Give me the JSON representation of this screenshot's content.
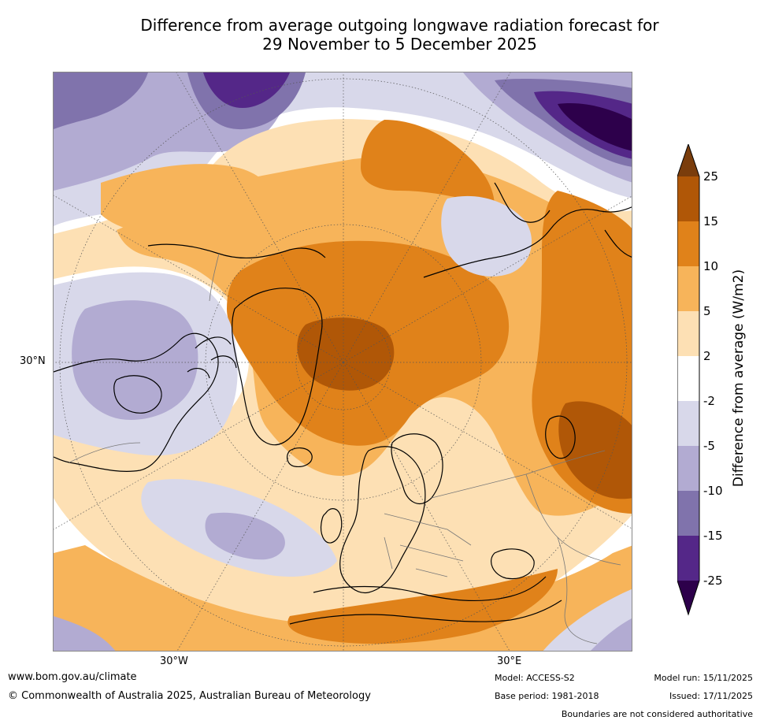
{
  "title": {
    "line1": "Difference from average outgoing longwave radiation forecast for",
    "line2": "29 November to 5 December 2025"
  },
  "axes": {
    "lat_label": "30°N",
    "lon_labels": [
      "30°W",
      "30°E"
    ]
  },
  "colorbar": {
    "label": "Difference from average (W/m2)",
    "ticks": [
      "25",
      "15",
      "10",
      "5",
      "2",
      "-2",
      "-5",
      "-10",
      "-15",
      "-25"
    ],
    "colors": [
      "#7a3d0c",
      "#b05707",
      "#e0821a",
      "#f7b45a",
      "#fde0b4",
      "#ffffff",
      "#d8d8ea",
      "#b2abd2",
      "#8073ac",
      "#542788",
      "#2d004b"
    ]
  },
  "footer": {
    "website": "www.bom.gov.au/climate",
    "copyright": "© Commonwealth of Australia 2025, Australian Bureau of Meteorology",
    "model": "Model: ACCESS-S2",
    "base_period": "Base period: 1981-2018",
    "model_run": "Model run: 15/11/2025",
    "issued": "Issued: 17/11/2025",
    "disclaimer": "Boundaries are not considered authoritative"
  }
}
